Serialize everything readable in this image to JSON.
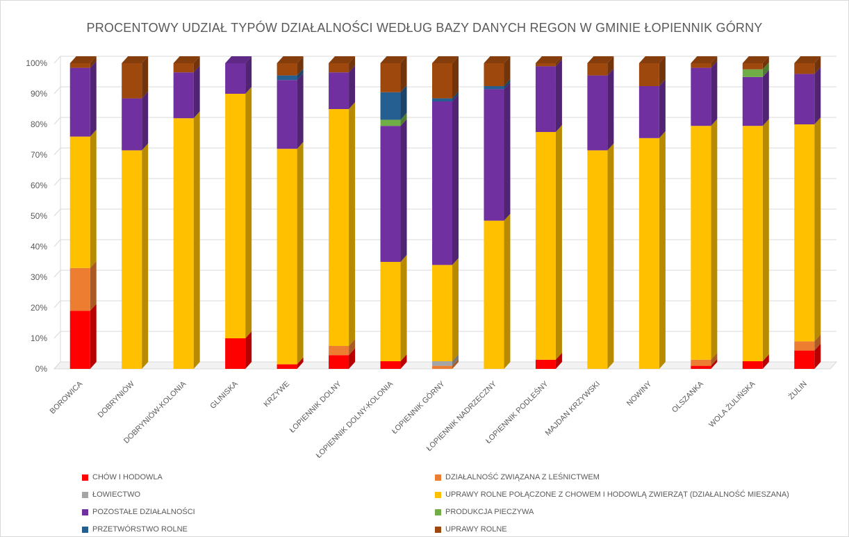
{
  "chart_data": {
    "type": "bar",
    "stacked": true,
    "title": "PROCENTOWY UDZIAŁ TYPÓW DZIAŁALNOŚCI WEDŁUG BAZY DANYCH REGON W GMINIE ŁOPIENNIK GÓRNY",
    "xlabel": "",
    "ylabel": "",
    "ylim": [
      0,
      100
    ],
    "yticks": [
      "0%",
      "10%",
      "20%",
      "30%",
      "40%",
      "50%",
      "60%",
      "70%",
      "80%",
      "90%",
      "100%"
    ],
    "grid": true,
    "legend_position": "bottom",
    "categories": [
      "BOROWICA",
      "DOBRYNIÓW",
      "DOBRYNIÓW-KOLONIA",
      "GLINISKA",
      "KRZYWE",
      "ŁOPIENNIK DOLNY",
      "ŁOPIENNIK DOLNY-KOLONIA",
      "ŁOPIENNIK GÓRNY",
      "ŁOPIENNIK NADRZECZNY",
      "ŁOPIENNIK PODLEŚNY",
      "MAJDAN KRZYWSKI",
      "NOWINY",
      "OLSZANKA",
      "WOLA ŻULIŃSKA",
      "ŻULIN"
    ],
    "series": [
      {
        "name": "CHÓW I HODOWLA",
        "color": "#ff0000",
        "values": [
          19,
          0,
          0,
          10,
          1.5,
          4.5,
          2.5,
          0,
          0,
          3,
          0,
          0,
          1,
          2.5,
          6
        ]
      },
      {
        "name": "DZIAŁALNOŚĆ ZWIĄZANA Z LEŚNICTWEM",
        "color": "#ed7d31",
        "values": [
          14,
          0,
          0,
          0,
          0,
          3,
          0,
          1,
          0,
          0,
          0,
          0,
          2,
          0,
          3
        ]
      },
      {
        "name": "ŁOWIECTWO",
        "color": "#a5a5a5",
        "values": [
          0,
          0,
          0,
          0,
          0,
          0,
          0,
          1.5,
          0,
          0,
          0,
          0,
          0,
          0,
          0
        ]
      },
      {
        "name": "UPRAWY ROLNE POŁĄCZONE Z CHOWEM I HODOWLĄ ZWIERZĄT (DZIAŁALNOŚĆ MIESZANA)",
        "color": "#ffc000",
        "values": [
          43,
          71.5,
          82,
          80,
          70.5,
          77.5,
          32.5,
          31.5,
          48.5,
          74.5,
          71.5,
          75.5,
          76.5,
          77,
          71
        ]
      },
      {
        "name": "POZOSTAŁE DZIAŁALNOŚCI",
        "color": "#7030a0",
        "values": [
          22.5,
          17,
          15,
          10,
          22.5,
          12,
          44.5,
          53.5,
          43,
          21.5,
          24.5,
          17,
          19,
          16,
          16.5
        ]
      },
      {
        "name": "PRODUKCJA PIECZYWA",
        "color": "#70ad47",
        "values": [
          0,
          0,
          0,
          0,
          0,
          0,
          2,
          0,
          0,
          0,
          0,
          0,
          0,
          2.5,
          0
        ]
      },
      {
        "name": "PRZETWÓRSTWO ROLNE",
        "color": "#255e91",
        "values": [
          0,
          0,
          0,
          0,
          1.5,
          0,
          9,
          1,
          1,
          0,
          0,
          0,
          0,
          0,
          0
        ]
      },
      {
        "name": "UPRAWY ROLNE",
        "color": "#9e480e",
        "values": [
          1.5,
          11.5,
          3,
          0,
          4,
          3,
          9.5,
          11.5,
          7.5,
          1,
          4,
          7.5,
          1.5,
          2,
          3.5
        ]
      }
    ]
  }
}
